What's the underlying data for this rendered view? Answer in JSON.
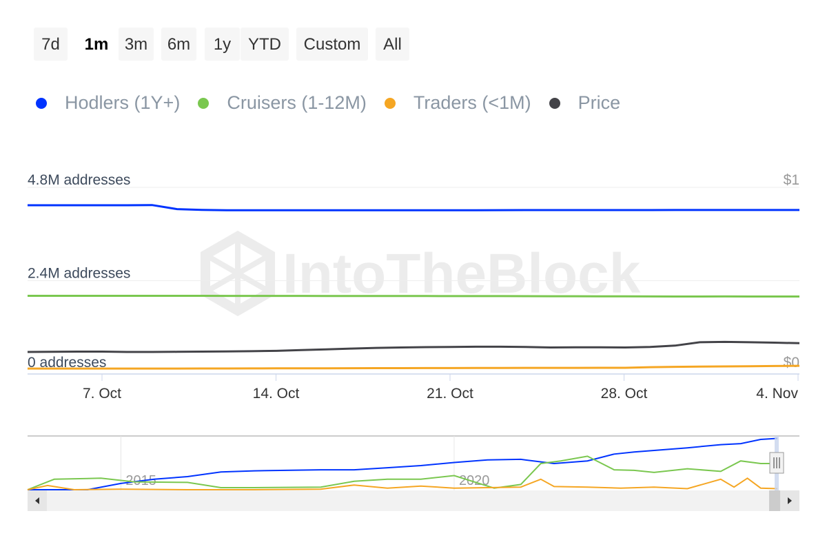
{
  "range_buttons": [
    "7d",
    "1m",
    "3m",
    "6m",
    "1y",
    "YTD",
    "Custom",
    "All"
  ],
  "selected_range": "1m",
  "legend": [
    {
      "name": "Hodlers (1Y+)",
      "color": "#0033ff"
    },
    {
      "name": "Cruisers (1-12M)",
      "color": "#7ac74f"
    },
    {
      "name": "Traders (<1M)",
      "color": "#f5a623"
    },
    {
      "name": "Price",
      "color": "#434348"
    }
  ],
  "watermark": "IntoTheBlock",
  "chart_data": {
    "type": "line",
    "x_start": "2023-10-04",
    "x_end": "2023-11-04",
    "x_interval": "daily",
    "x_tick_labels": [
      "7. Oct",
      "14. Oct",
      "21. Oct",
      "28. Oct",
      "4. Nov"
    ],
    "y_left": {
      "tick_labels": [
        "0 addresses",
        "2.4M addresses",
        "4.8M addresses"
      ],
      "ylim": [
        0,
        4800000
      ]
    },
    "y_right": {
      "tick_labels": [
        "$0",
        "$1"
      ],
      "ylim": [
        0,
        1
      ]
    },
    "grid": true,
    "legend_placement": "top-left",
    "series": [
      {
        "name": "Hodlers (1Y+)",
        "axis": "left",
        "values": [
          4340000,
          4340000,
          4340000,
          4340000,
          4340000,
          4345000,
          4240000,
          4220000,
          4210000,
          4210000,
          4210000,
          4210000,
          4210000,
          4210000,
          4210000,
          4210000,
          4210000,
          4210000,
          4212000,
          4214000,
          4215000,
          4215000,
          4215000,
          4215000,
          4216000,
          4216000,
          4217000,
          4218000,
          4218000,
          4218000,
          4218000,
          4218000
        ]
      },
      {
        "name": "Cruisers (1-12M)",
        "axis": "left",
        "values": [
          2010000,
          2010000,
          2010000,
          2010000,
          2010000,
          2010000,
          2010000,
          2010000,
          2008000,
          2008000,
          2008000,
          2008000,
          2007000,
          2006000,
          2006000,
          2005000,
          2005000,
          2004000,
          2004000,
          2003000,
          2002000,
          2000000,
          2000000,
          1998000,
          1997000,
          1995000,
          1993000,
          1992000,
          1994000,
          1993000,
          1993000,
          1992000
        ]
      },
      {
        "name": "Traders (<1M)",
        "axis": "left",
        "values": [
          140000,
          140000,
          140000,
          140000,
          140000,
          140000,
          140000,
          142000,
          142000,
          143000,
          145000,
          146000,
          147000,
          148000,
          150000,
          150000,
          152000,
          153000,
          155000,
          156000,
          157000,
          158000,
          158000,
          160000,
          160000,
          175000,
          185000,
          190000,
          195000,
          200000,
          205000,
          210000
        ]
      },
      {
        "name": "Price",
        "axis": "right",
        "values": [
          0.118,
          0.119,
          0.12,
          0.12,
          0.118,
          0.118,
          0.119,
          0.12,
          0.121,
          0.122,
          0.124,
          0.128,
          0.132,
          0.136,
          0.14,
          0.142,
          0.144,
          0.145,
          0.146,
          0.146,
          0.145,
          0.142,
          0.143,
          0.143,
          0.142,
          0.145,
          0.152,
          0.17,
          0.172,
          0.17,
          0.168,
          0.165
        ]
      }
    ]
  },
  "navigator": {
    "x_tick_labels": [
      "2015",
      "2020"
    ],
    "x_start": 2013.6,
    "x_end": 2024.85,
    "series": [
      {
        "name": "Hodlers (1Y+)",
        "x": [
          2013.6,
          2014.5,
          2015,
          2015.5,
          2016,
          2016.5,
          2017,
          2018,
          2018.5,
          2019,
          2019.5,
          2020,
          2020.5,
          2021,
          2021.5,
          2022,
          2022.4,
          2022.7,
          2023,
          2023.5,
          2024,
          2024.3,
          2024.6,
          2024.85
        ],
        "values": [
          0,
          0,
          0.12,
          0.2,
          0.25,
          0.34,
          0.36,
          0.38,
          0.38,
          0.42,
          0.46,
          0.52,
          0.57,
          0.58,
          0.5,
          0.55,
          0.68,
          0.72,
          0.75,
          0.8,
          0.86,
          0.88,
          0.96,
          0.98
        ]
      },
      {
        "name": "Cruisers (1-12M)",
        "x": [
          2013.6,
          2014,
          2014.7,
          2015.2,
          2016,
          2016.5,
          2017,
          2018,
          2018.5,
          2019,
          2019.5,
          2020,
          2020.6,
          2021,
          2021.3,
          2021.6,
          2022,
          2022.4,
          2022.7,
          2023,
          2023.5,
          2024,
          2024.3,
          2024.6,
          2024.85
        ],
        "values": [
          0,
          0.2,
          0.22,
          0.15,
          0.14,
          0.04,
          0.04,
          0.05,
          0.16,
          0.2,
          0.2,
          0.27,
          0.03,
          0.1,
          0.5,
          0.55,
          0.64,
          0.38,
          0.37,
          0.33,
          0.4,
          0.35,
          0.55,
          0.5,
          0.5
        ]
      },
      {
        "name": "Traders (<1M)",
        "x": [
          2013.6,
          2013.9,
          2014.3,
          2015,
          2016,
          2017,
          2018,
          2018.5,
          2019,
          2019.5,
          2020,
          2020.5,
          2021,
          2021.3,
          2021.5,
          2022,
          2022.5,
          2023,
          2023.5,
          2024,
          2024.2,
          2024.4,
          2024.6,
          2024.85
        ],
        "values": [
          0,
          0.08,
          0,
          0.01,
          0,
          0,
          0.01,
          0.09,
          0.03,
          0.07,
          0.03,
          0.04,
          0.05,
          0.2,
          0.06,
          0.05,
          0.03,
          0.05,
          0.02,
          0.2,
          0.05,
          0.22,
          0.03,
          0.02
        ]
      }
    ]
  }
}
